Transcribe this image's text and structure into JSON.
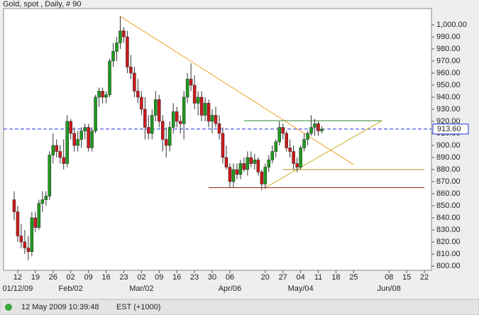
{
  "chart_data": {
    "type": "candlestick",
    "title": "Gold, spot , Daily, # 90",
    "x": [
      "2009-01-09",
      "2009-01-12",
      "2009-01-13",
      "2009-01-14",
      "2009-01-15",
      "2009-01-16",
      "2009-01-19",
      "2009-01-20",
      "2009-01-21",
      "2009-01-22",
      "2009-01-23",
      "2009-01-26",
      "2009-01-27",
      "2009-01-28",
      "2009-01-29",
      "2009-01-30",
      "2009-02-02",
      "2009-02-03",
      "2009-02-04",
      "2009-02-05",
      "2009-02-06",
      "2009-02-09",
      "2009-02-10",
      "2009-02-11",
      "2009-02-12",
      "2009-02-13",
      "2009-02-16",
      "2009-02-17",
      "2009-02-18",
      "2009-02-19",
      "2009-02-20",
      "2009-02-23",
      "2009-02-24",
      "2009-02-25",
      "2009-02-26",
      "2009-02-27",
      "2009-03-02",
      "2009-03-03",
      "2009-03-04",
      "2009-03-05",
      "2009-03-06",
      "2009-03-09",
      "2009-03-10",
      "2009-03-11",
      "2009-03-12",
      "2009-03-13",
      "2009-03-16",
      "2009-03-17",
      "2009-03-18",
      "2009-03-19",
      "2009-03-20",
      "2009-03-23",
      "2009-03-24",
      "2009-03-25",
      "2009-03-26",
      "2009-03-27",
      "2009-03-30",
      "2009-03-31",
      "2009-04-01",
      "2009-04-02",
      "2009-04-03",
      "2009-04-06",
      "2009-04-07",
      "2009-04-08",
      "2009-04-09",
      "2009-04-10",
      "2009-04-13",
      "2009-04-14",
      "2009-04-15",
      "2009-04-16",
      "2009-04-17",
      "2009-04-20",
      "2009-04-21",
      "2009-04-22",
      "2009-04-23",
      "2009-04-24",
      "2009-04-27",
      "2009-04-28",
      "2009-04-29",
      "2009-04-30",
      "2009-05-01",
      "2009-05-04",
      "2009-05-05",
      "2009-05-06",
      "2009-05-07",
      "2009-05-08",
      "2009-05-11",
      "2009-05-12"
    ],
    "ohlc": [
      [
        855,
        862,
        838,
        845
      ],
      [
        845,
        850,
        820,
        825
      ],
      [
        825,
        835,
        815,
        820
      ],
      [
        820,
        830,
        810,
        815
      ],
      [
        815,
        825,
        805,
        812
      ],
      [
        812,
        845,
        808,
        840
      ],
      [
        840,
        845,
        828,
        832
      ],
      [
        832,
        855,
        830,
        852
      ],
      [
        852,
        862,
        845,
        855
      ],
      [
        855,
        862,
        850,
        858
      ],
      [
        858,
        895,
        855,
        892
      ],
      [
        892,
        910,
        885,
        900
      ],
      [
        900,
        905,
        890,
        895
      ],
      [
        895,
        900,
        885,
        890
      ],
      [
        890,
        905,
        880,
        885
      ],
      [
        885,
        925,
        882,
        920
      ],
      [
        920,
        922,
        905,
        910
      ],
      [
        910,
        915,
        895,
        900
      ],
      [
        900,
        912,
        895,
        905
      ],
      [
        905,
        915,
        898,
        912
      ],
      [
        912,
        918,
        905,
        915
      ],
      [
        915,
        918,
        895,
        898
      ],
      [
        898,
        915,
        895,
        912
      ],
      [
        912,
        942,
        910,
        940
      ],
      [
        940,
        948,
        932,
        945
      ],
      [
        945,
        948,
        935,
        940
      ],
      [
        940,
        945,
        935,
        942
      ],
      [
        942,
        972,
        940,
        970
      ],
      [
        970,
        985,
        965,
        978
      ],
      [
        978,
        990,
        970,
        985
      ],
      [
        985,
        1007,
        980,
        995
      ],
      [
        995,
        998,
        985,
        990
      ],
      [
        990,
        995,
        960,
        965
      ],
      [
        965,
        975,
        955,
        960
      ],
      [
        960,
        965,
        940,
        945
      ],
      [
        945,
        955,
        935,
        940
      ],
      [
        940,
        945,
        925,
        930
      ],
      [
        930,
        940,
        905,
        915
      ],
      [
        915,
        925,
        905,
        910
      ],
      [
        910,
        930,
        905,
        925
      ],
      [
        925,
        945,
        920,
        938
      ],
      [
        938,
        942,
        915,
        920
      ],
      [
        920,
        925,
        895,
        905
      ],
      [
        905,
        915,
        890,
        900
      ],
      [
        900,
        920,
        895,
        915
      ],
      [
        915,
        935,
        910,
        928
      ],
      [
        928,
        932,
        915,
        920
      ],
      [
        920,
        925,
        910,
        918
      ],
      [
        918,
        945,
        905,
        940
      ],
      [
        940,
        960,
        935,
        955
      ],
      [
        955,
        968,
        945,
        950
      ],
      [
        950,
        958,
        930,
        935
      ],
      [
        935,
        945,
        925,
        940
      ],
      [
        940,
        945,
        920,
        925
      ],
      [
        925,
        940,
        920,
        935
      ],
      [
        935,
        938,
        915,
        920
      ],
      [
        920,
        930,
        910,
        925
      ],
      [
        925,
        932,
        915,
        918
      ],
      [
        918,
        925,
        905,
        910
      ],
      [
        910,
        915,
        885,
        890
      ],
      [
        890,
        900,
        880,
        882
      ],
      [
        882,
        885,
        865,
        870
      ],
      [
        870,
        885,
        865,
        880
      ],
      [
        880,
        885,
        872,
        876
      ],
      [
        876,
        888,
        872,
        885
      ],
      [
        885,
        890,
        878,
        880
      ],
      [
        880,
        895,
        875,
        890
      ],
      [
        890,
        895,
        882,
        885
      ],
      [
        885,
        893,
        880,
        888
      ],
      [
        888,
        890,
        875,
        878
      ],
      [
        878,
        880,
        863,
        868
      ],
      [
        868,
        885,
        864,
        882
      ],
      [
        882,
        892,
        878,
        888
      ],
      [
        888,
        900,
        885,
        895
      ],
      [
        895,
        905,
        890,
        903
      ],
      [
        903,
        920,
        900,
        915
      ],
      [
        915,
        918,
        905,
        910
      ],
      [
        910,
        912,
        895,
        898
      ],
      [
        898,
        905,
        890,
        895
      ],
      [
        895,
        900,
        880,
        885
      ],
      [
        885,
        890,
        878,
        882
      ],
      [
        882,
        900,
        880,
        898
      ],
      [
        898,
        910,
        895,
        905
      ],
      [
        905,
        912,
        900,
        910
      ],
      [
        910,
        925,
        908,
        915
      ],
      [
        915,
        922,
        908,
        918
      ],
      [
        918,
        920,
        908,
        912
      ],
      [
        912,
        916,
        910,
        913.6
      ]
    ],
    "up_color": "#1f9a1f",
    "down_color": "#cc1a1a",
    "xlim": [
      "2009-01-06",
      "2009-06-24"
    ],
    "ylim": [
      796.5,
      1013.5
    ],
    "yticks": [
      {
        "value": 800,
        "label": "800.00"
      },
      {
        "value": 810,
        "label": "810.00"
      },
      {
        "value": 820,
        "label": "820.00"
      },
      {
        "value": 830,
        "label": "830.00"
      },
      {
        "value": 840,
        "label": "840.00"
      },
      {
        "value": 850,
        "label": "850.00"
      },
      {
        "value": 860,
        "label": "860.00"
      },
      {
        "value": 870,
        "label": "870.00"
      },
      {
        "value": 880,
        "label": "880.00"
      },
      {
        "value": 890,
        "label": "890.00"
      },
      {
        "value": 900,
        "label": "900.00"
      },
      {
        "value": 910,
        "label": "910.00"
      },
      {
        "value": 920,
        "label": "920.00"
      },
      {
        "value": 930,
        "label": "930.00"
      },
      {
        "value": 940,
        "label": "940.00"
      },
      {
        "value": 950,
        "label": "950.00"
      },
      {
        "value": 960,
        "label": "960.00"
      },
      {
        "value": 970,
        "label": "970.00"
      },
      {
        "value": 980,
        "label": "980.00"
      },
      {
        "value": 990,
        "label": "990.00"
      },
      {
        "value": 1000,
        "label": "1,000.00"
      }
    ],
    "xticks": [
      {
        "value": "2009-01-12",
        "label": "12"
      },
      {
        "value": "2009-01-19",
        "label": "19"
      },
      {
        "value": "2009-01-26",
        "label": "26"
      },
      {
        "value": "2009-02-02",
        "label": "02"
      },
      {
        "value": "2009-02-09",
        "label": "09"
      },
      {
        "value": "2009-02-16",
        "label": "16"
      },
      {
        "value": "2009-02-23",
        "label": "23"
      },
      {
        "value": "2009-03-02",
        "label": "02"
      },
      {
        "value": "2009-03-09",
        "label": "09"
      },
      {
        "value": "2009-03-16",
        "label": "16"
      },
      {
        "value": "2009-03-23",
        "label": "23"
      },
      {
        "value": "2009-03-30",
        "label": "30"
      },
      {
        "value": "2009-04-06",
        "label": "06"
      },
      {
        "value": "2009-04-20",
        "label": "20"
      },
      {
        "value": "2009-04-27",
        "label": "27"
      },
      {
        "value": "2009-05-04",
        "label": "04"
      },
      {
        "value": "2009-05-11",
        "label": "11"
      },
      {
        "value": "2009-05-18",
        "label": "18"
      },
      {
        "value": "2009-05-25",
        "label": "25"
      },
      {
        "value": "2009-06-08",
        "label": "08"
      },
      {
        "value": "2009-06-15",
        "label": "15"
      },
      {
        "value": "2009-06-22",
        "label": "22"
      }
    ],
    "month_ticks": [
      {
        "value": "2009-01-12",
        "label": "01/12/09"
      },
      {
        "value": "2009-02-02",
        "label": "Feb/02"
      },
      {
        "value": "2009-03-02",
        "label": "Mar/02"
      },
      {
        "value": "2009-04-06",
        "label": "Apr/06"
      },
      {
        "value": "2009-05-04",
        "label": "May/04"
      },
      {
        "value": "2009-06-08",
        "label": "Jun/08"
      }
    ],
    "last_price": {
      "value": 913.6,
      "label": "913.60"
    },
    "last_price_color": "#2233dd",
    "trendlines": [
      {
        "x": [
          "2009-02-20",
          "2009-05-25"
        ],
        "y": [
          1007,
          884
        ],
        "color": "#f0a020"
      },
      {
        "x": [
          "2009-04-10",
          "2009-06-04"
        ],
        "y": [
          920.5,
          920.5
        ],
        "color": "#2a8a2a"
      },
      {
        "x": [
          "2009-04-20",
          "2009-06-04"
        ],
        "y": [
          865,
          920.5
        ],
        "color": "#c8b020"
      },
      {
        "x": [
          "2009-04-27",
          "2009-06-22"
        ],
        "y": [
          880,
          880
        ],
        "color": "#a89020"
      },
      {
        "x": [
          "2009-03-27",
          "2009-06-22"
        ],
        "y": [
          865,
          865
        ],
        "color": "#a02020"
      }
    ]
  },
  "status": {
    "timestamp": "12 May 2009 10:39:48",
    "timezone": "EST (+1000)"
  }
}
